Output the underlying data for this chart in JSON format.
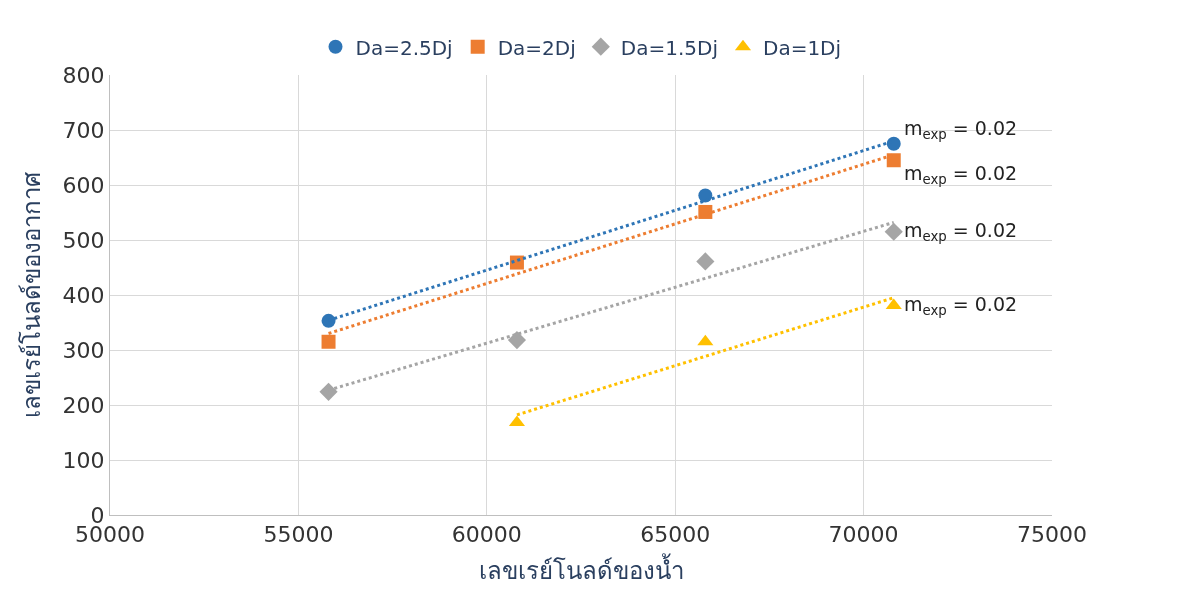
{
  "chart_data": {
    "type": "scatter",
    "xlabel": "เลขเรย์โนลด์ของน้ำ",
    "ylabel": "เลขเรย์โนลด์ของอากาศ",
    "xlim": [
      50000,
      75000
    ],
    "xticks": [
      50000,
      55000,
      60000,
      65000,
      70000,
      75000
    ],
    "ylim": [
      0,
      800
    ],
    "yticks": [
      0,
      100,
      200,
      300,
      400,
      500,
      600,
      700,
      800
    ],
    "grid": true,
    "legend": "top",
    "series": [
      {
        "name": "Da=2.5Dj",
        "color": "#2e75b6",
        "marker": "circle",
        "x": [
          55800,
          60800,
          65800,
          70800
        ],
        "values": [
          353,
          null,
          581,
          675
        ]
      },
      {
        "name": "Da=2Dj",
        "color": "#ed7d31",
        "marker": "square",
        "x": [
          55800,
          60800,
          65800,
          70800
        ],
        "values": [
          315,
          459,
          551,
          645
        ]
      },
      {
        "name": "Da=1.5Dj",
        "color": "#a5a5a5",
        "marker": "diamond",
        "x": [
          55800,
          60800,
          65800,
          70800
        ],
        "values": [
          224,
          318,
          461,
          515
        ]
      },
      {
        "name": "Da=1Dj",
        "color": "#ffc000",
        "marker": "triangle",
        "x": [
          60800,
          65800,
          70800
        ],
        "values": [
          168,
          315,
          381
        ]
      },
      {
        "type": "line",
        "color": "#2e75b6",
        "line_style": "dotted",
        "marker": "none",
        "x": [
          55800,
          70800
        ],
        "values": [
          354,
          680
        ]
      },
      {
        "type": "line",
        "color": "#ed7d31",
        "line_style": "dotted",
        "marker": "none",
        "x": [
          55800,
          70800
        ],
        "values": [
          330,
          655
        ]
      },
      {
        "type": "line",
        "color": "#a5a5a5",
        "line_style": "dotted",
        "marker": "none",
        "x": [
          55800,
          70800
        ],
        "values": [
          227,
          532
        ]
      },
      {
        "type": "line",
        "color": "#ffc000",
        "line_style": "dotted",
        "marker": "none",
        "x": [
          60800,
          70800
        ],
        "values": [
          182,
          395
        ]
      }
    ],
    "annotations": [
      "m$_{exp}$ = 0.02",
      "m$_{exp}$ = 0.02",
      "m$_{exp}$ = 0.02",
      "m$_{exp}$ = 0.02"
    ]
  }
}
